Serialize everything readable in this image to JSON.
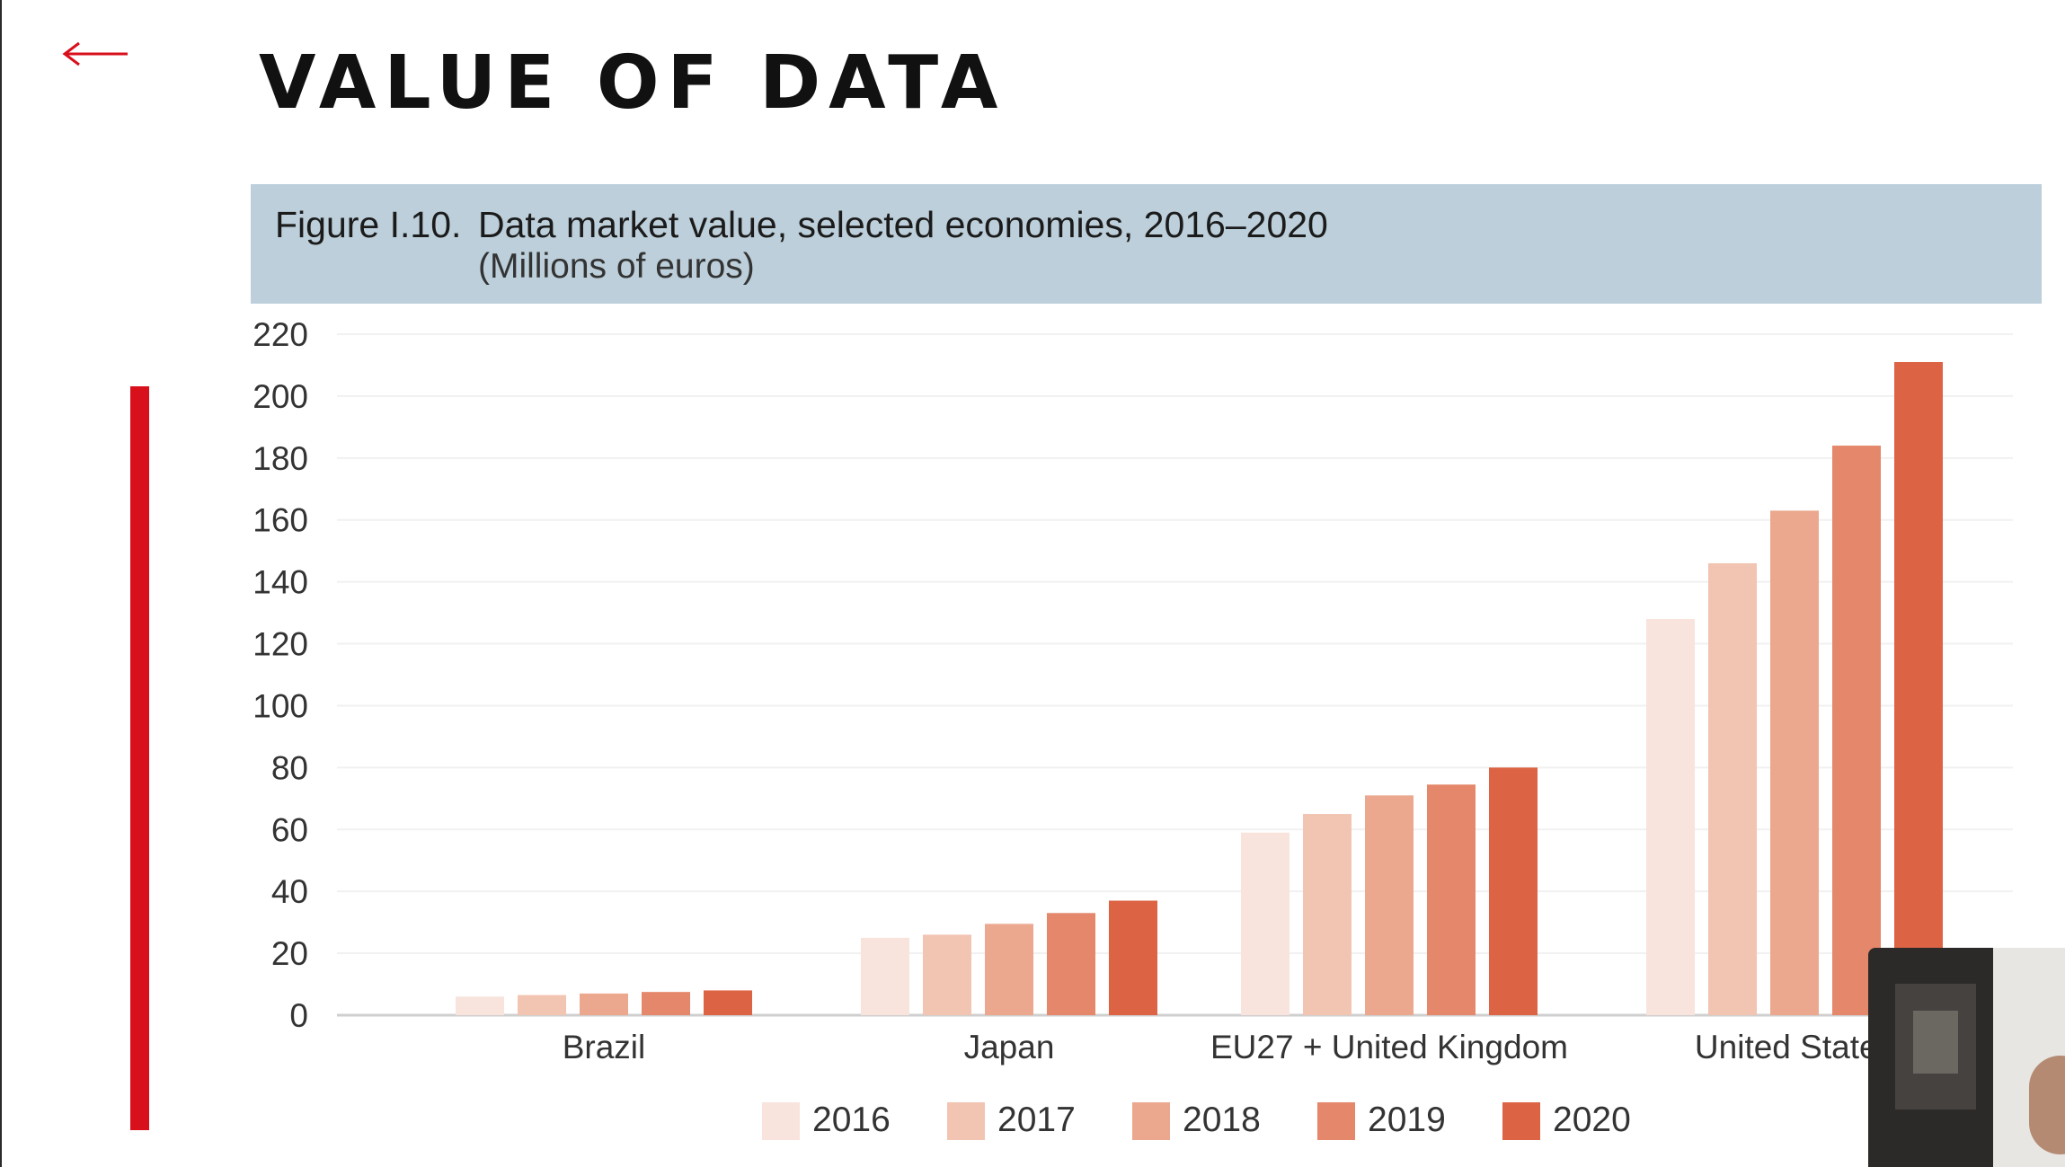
{
  "slide": {
    "title": "VALUE OF DATA"
  },
  "figure": {
    "label": "Figure I.10.",
    "title": "Data market value, selected economies, 2016–2020",
    "subtitle": "(Millions of euros)"
  },
  "colors": {
    "accent": "#d8101c",
    "header_band": "#bccfda",
    "series": [
      "#f8e4dc",
      "#f2c4b2",
      "#eba88f",
      "#e5876a",
      "#dc6444"
    ]
  },
  "icons": {
    "back": "left-arrow-icon"
  },
  "chart_data": {
    "type": "bar",
    "title": "Data market value, selected economies, 2016–2020",
    "subtitle": "(Millions of euros)",
    "categories": [
      "Brazil",
      "Japan",
      "EU27 + United Kingdom",
      "United States"
    ],
    "series": [
      {
        "name": "2016",
        "values": [
          6,
          25,
          59,
          128
        ]
      },
      {
        "name": "2017",
        "values": [
          6.5,
          26,
          65,
          146
        ]
      },
      {
        "name": "2018",
        "values": [
          7,
          29.5,
          71,
          163
        ]
      },
      {
        "name": "2019",
        "values": [
          7.5,
          33,
          74.5,
          184
        ]
      },
      {
        "name": "2020",
        "values": [
          8,
          37,
          80,
          211
        ]
      }
    ],
    "yticks": [
      "0",
      "20",
      "40",
      "60",
      "80",
      "100",
      "120",
      "140",
      "160",
      "180",
      "200",
      "220"
    ],
    "ylim": [
      0,
      220
    ],
    "grid": true,
    "legend": "bottom"
  }
}
